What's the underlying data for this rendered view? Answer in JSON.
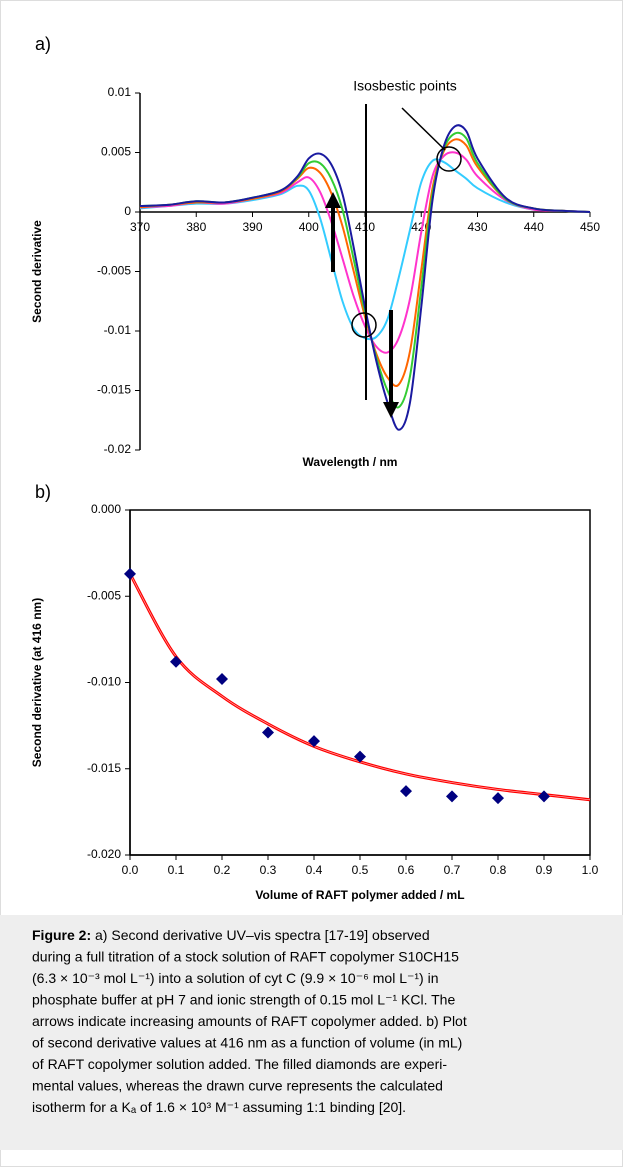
{
  "chart_data": [
    {
      "type": "line",
      "panel": "a)",
      "annotation": "Isosbestic points",
      "xlabel": "Wavelength / nm",
      "ylabel": "Second derivative",
      "x": [
        370,
        375,
        380,
        385,
        390,
        395,
        398,
        400,
        402,
        404,
        406,
        408,
        410,
        412,
        414,
        416,
        418,
        420,
        422,
        424,
        426,
        428,
        430,
        435,
        440,
        445,
        450
      ],
      "series": [
        {
          "color": "#33ccff",
          "values": [
            0.0003,
            0.0005,
            0.0007,
            0.0007,
            0.001,
            0.0015,
            0.0022,
            0.0018,
            -0.0005,
            -0.004,
            -0.0075,
            -0.0098,
            -0.0106,
            -0.0105,
            -0.009,
            -0.0055,
            -0.0015,
            0.0025,
            0.0043,
            0.0042,
            0.0035,
            0.0028,
            0.002,
            0.0008,
            0.0002,
            0.0001,
            0
          ]
        },
        {
          "color": "#ff33cc",
          "values": [
            0.0004,
            0.0005,
            0.0008,
            0.0007,
            0.0011,
            0.0016,
            0.0025,
            0.0029,
            0.0017,
            -0.0008,
            -0.0039,
            -0.0071,
            -0.0096,
            -0.0113,
            -0.0118,
            -0.0106,
            -0.0073,
            -0.0017,
            0.003,
            0.0047,
            0.005,
            0.0044,
            0.003,
            0.001,
            0.0002,
            0.0001,
            0
          ]
        },
        {
          "color": "#ff6600",
          "values": [
            0.0004,
            0.0006,
            0.0008,
            0.0008,
            0.0011,
            0.0017,
            0.0028,
            0.0037,
            0.0033,
            0.0016,
            -0.0012,
            -0.005,
            -0.0088,
            -0.0119,
            -0.0139,
            -0.0145,
            -0.0117,
            -0.0049,
            0.002,
            0.0051,
            0.0061,
            0.0056,
            0.0038,
            0.0011,
            0.0003,
            0.0001,
            0
          ]
        },
        {
          "color": "#33cc33",
          "values": [
            0.0005,
            0.0006,
            0.0009,
            0.0008,
            0.0012,
            0.0018,
            0.0029,
            0.0041,
            0.0041,
            0.0028,
            0.0002,
            -0.004,
            -0.0084,
            -0.0122,
            -0.015,
            -0.0164,
            -0.0138,
            -0.0064,
            0.0015,
            0.0053,
            0.0066,
            0.0062,
            0.0041,
            0.0011,
            0.0003,
            0.0001,
            0
          ]
        },
        {
          "color": "#1a1aa0",
          "values": [
            0.0005,
            0.0006,
            0.0009,
            0.0008,
            0.0012,
            0.0018,
            0.003,
            0.0045,
            0.0049,
            0.004,
            0.0015,
            -0.003,
            -0.008,
            -0.0125,
            -0.016,
            -0.0183,
            -0.016,
            -0.008,
            0.001,
            0.0055,
            0.0072,
            0.0068,
            0.0045,
            0.0012,
            0.0003,
            0.0001,
            0
          ]
        }
      ],
      "xlim": [
        370,
        450
      ],
      "xticks": [
        370,
        380,
        390,
        400,
        410,
        420,
        430,
        440,
        450
      ],
      "ylim": [
        -0.02,
        0.01
      ],
      "yticks": [
        0.01,
        0.005,
        0,
        -0.005,
        -0.01,
        -0.015,
        -0.02
      ]
    },
    {
      "type": "scatter",
      "panel": "b)",
      "xlabel": "Volume of RAFT polymer added / mL",
      "ylabel": "Second derivative (at 416 nm)",
      "x": [
        0,
        0.1,
        0.2,
        0.3,
        0.4,
        0.5,
        0.6,
        0.7,
        0.8,
        0.9
      ],
      "values": [
        -0.0037,
        -0.0088,
        -0.0098,
        -0.0129,
        -0.0134,
        -0.0143,
        -0.0163,
        -0.0166,
        -0.0167,
        -0.0166
      ],
      "color": "#000080",
      "marker": "diamond",
      "fit": {
        "x": [
          0,
          0.1,
          0.2,
          0.3,
          0.4,
          0.5,
          0.6,
          0.7,
          0.8,
          0.9,
          1
        ],
        "values": [
          -0.0037,
          -0.0085,
          -0.0108,
          -0.0124,
          -0.0137,
          -0.0146,
          -0.0153,
          -0.0158,
          -0.0162,
          -0.0165,
          -0.0168
        ],
        "color": "#ff0000"
      },
      "xlim": [
        0,
        1
      ],
      "xticks": [
        {
          "value": 0,
          "label": "0.0"
        },
        0.1,
        0.2,
        0.3,
        0.4,
        0.5,
        0.6,
        0.7,
        0.8,
        0.9,
        {
          "value": 1,
          "label": "1.0"
        }
      ],
      "ylim": [
        -0.02,
        0
      ],
      "yticks": [
        {
          "value": 0,
          "label": "0.000"
        },
        -0.005,
        {
          "value": -0.01,
          "label": "-0.010"
        },
        -0.015,
        {
          "value": -0.02,
          "label": "-0.020"
        }
      ]
    }
  ],
  "caption": {
    "label": "Figure 2:",
    "lines": [
      " a) Second derivative UV–vis spectra [17-19] observed",
      "during a full titration of a stock solution of RAFT copolymer S10CH15",
      "(6.3 × 10⁻³ mol L⁻¹) into a solution of cyt C (9.9 × 10⁻⁶ mol L⁻¹) in",
      "phosphate buffer at pH 7 and ionic strength of 0.15 mol L⁻¹ KCl. The",
      "arrows indicate increasing amounts of RAFT copolymer added. b) Plot",
      "of second derivative values at 416 nm as a function of volume (in mL)",
      "of RAFT copolymer solution added. The filled diamonds are experi-",
      "mental values, whereas the drawn curve represents the calculated",
      "isotherm for a Kₐ of 1.6 × 10³ M⁻¹ assuming 1:1 binding [20]."
    ]
  }
}
